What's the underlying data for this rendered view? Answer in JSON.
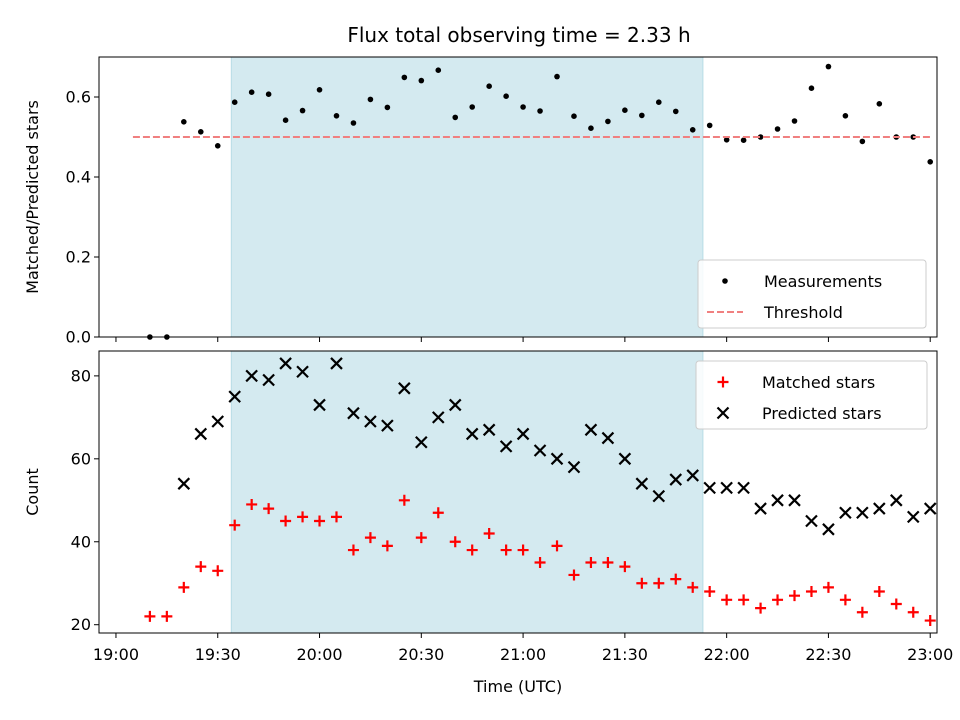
{
  "chart_data": [
    {
      "type": "scatter",
      "title": "Flux total observing time = 2.33 h",
      "ylabel": "Matched/Predicted stars",
      "xlim": [
        1135,
        1382
      ],
      "ylim": [
        0,
        0.7
      ],
      "yticks": [
        0.0,
        0.2,
        0.4,
        0.6
      ],
      "ytick_labels": [
        "0.0",
        "0.2",
        "0.4",
        "0.6"
      ],
      "shaded_span": [
        1174,
        1313
      ],
      "shaded_color": "#d4eaf0",
      "legend_position": "lower-right",
      "series": [
        {
          "name": "Measurements",
          "marker": "dot",
          "color": "#000000",
          "x": [
            1150,
            1155,
            1160,
            1165,
            1170,
            1175,
            1180,
            1185,
            1190,
            1195,
            1200,
            1205,
            1210,
            1215,
            1220,
            1225,
            1230,
            1235,
            1240,
            1245,
            1250,
            1255,
            1260,
            1265,
            1270,
            1275,
            1280,
            1285,
            1290,
            1295,
            1300,
            1305,
            1310,
            1315,
            1320,
            1325,
            1330,
            1335,
            1340,
            1345,
            1350,
            1355,
            1360,
            1365,
            1370,
            1375,
            1380
          ],
          "y": [
            0.0,
            0.0,
            0.538,
            0.513,
            0.478,
            0.587,
            0.612,
            0.607,
            0.542,
            0.566,
            0.618,
            0.553,
            0.535,
            0.594,
            0.574,
            0.649,
            0.641,
            0.667,
            0.549,
            0.575,
            0.627,
            0.602,
            0.575,
            0.565,
            0.651,
            0.552,
            0.522,
            0.539,
            0.567,
            0.554,
            0.587,
            0.564,
            0.518,
            0.529,
            0.493,
            0.492,
            0.5,
            0.52,
            0.54,
            0.622,
            0.676,
            0.553,
            0.489,
            0.583,
            0.5,
            0.5,
            0.438
          ]
        },
        {
          "name": "Threshold",
          "style": "dashed",
          "color": "#f08080",
          "x": [
            1145,
            1380
          ],
          "y": [
            0.5,
            0.5
          ]
        }
      ]
    },
    {
      "type": "scatter",
      "xlabel": "Time (UTC)",
      "ylabel": "Count",
      "xlim": [
        1135,
        1382
      ],
      "ylim": [
        18,
        86
      ],
      "xticks": [
        1140,
        1170,
        1200,
        1230,
        1260,
        1290,
        1320,
        1350,
        1380
      ],
      "xtick_labels": [
        "19:00",
        "19:30",
        "20:00",
        "20:30",
        "21:00",
        "21:30",
        "22:00",
        "22:30",
        "23:00"
      ],
      "yticks": [
        20,
        40,
        60,
        80
      ],
      "ytick_labels": [
        "20",
        "40",
        "60",
        "80"
      ],
      "shaded_span": [
        1174,
        1313
      ],
      "shaded_color": "#d4eaf0",
      "legend_position": "top-right",
      "series": [
        {
          "name": "Matched stars",
          "marker": "plus",
          "color": "#ff0000",
          "x": [
            1150,
            1155,
            1160,
            1165,
            1170,
            1175,
            1180,
            1185,
            1190,
            1195,
            1200,
            1205,
            1210,
            1215,
            1220,
            1225,
            1230,
            1235,
            1240,
            1245,
            1250,
            1255,
            1260,
            1265,
            1270,
            1275,
            1280,
            1285,
            1290,
            1295,
            1300,
            1305,
            1310,
            1315,
            1320,
            1325,
            1330,
            1335,
            1340,
            1345,
            1350,
            1355,
            1360,
            1365,
            1370,
            1375,
            1380
          ],
          "y": [
            22,
            22,
            29,
            34,
            33,
            44,
            49,
            48,
            45,
            46,
            45,
            46,
            38,
            41,
            39,
            50,
            41,
            47,
            40,
            38,
            42,
            38,
            38,
            35,
            39,
            32,
            35,
            35,
            34,
            30,
            30,
            31,
            29,
            28,
            26,
            26,
            24,
            26,
            27,
            28,
            29,
            26,
            23,
            28,
            25,
            23,
            21
          ]
        },
        {
          "name": "Predicted stars",
          "marker": "x",
          "color": "#000000",
          "x": [
            1160,
            1165,
            1170,
            1175,
            1180,
            1185,
            1190,
            1195,
            1200,
            1205,
            1210,
            1215,
            1220,
            1225,
            1230,
            1235,
            1240,
            1245,
            1250,
            1255,
            1260,
            1265,
            1270,
            1275,
            1280,
            1285,
            1290,
            1295,
            1300,
            1305,
            1310,
            1315,
            1320,
            1325,
            1330,
            1335,
            1340,
            1345,
            1350,
            1355,
            1360,
            1365,
            1370,
            1375,
            1380
          ],
          "y": [
            54,
            66,
            69,
            75,
            80,
            79,
            83,
            81,
            73,
            83,
            71,
            69,
            68,
            77,
            64,
            70,
            73,
            66,
            67,
            63,
            66,
            62,
            60,
            58,
            67,
            65,
            60,
            54,
            51,
            55,
            56,
            53,
            53,
            53,
            48,
            50,
            50,
            45,
            43,
            47,
            47,
            48,
            50,
            46,
            48
          ]
        }
      ]
    }
  ]
}
